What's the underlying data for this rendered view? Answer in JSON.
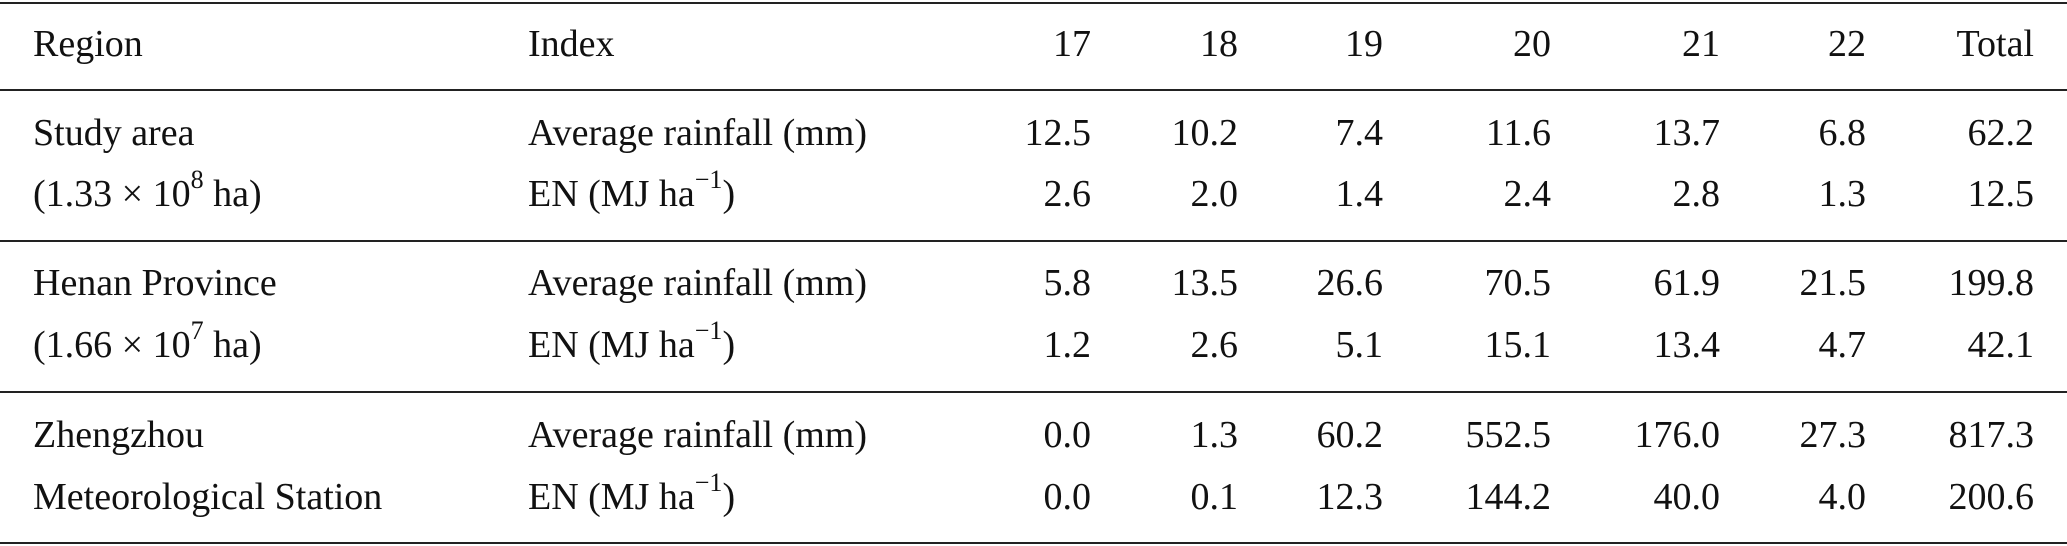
{
  "table": {
    "header": [
      "Region",
      "Index",
      "17",
      "18",
      "19",
      "20",
      "21",
      "22",
      "Total"
    ],
    "groups": [
      {
        "region": [
          [
            "Study area"
          ],
          [
            "(1.33 × 10",
            {
              "sup": "8"
            },
            " ha)"
          ]
        ],
        "rows": [
          {
            "index": [
              "Average rainfall (mm)"
            ],
            "values": [
              "12.5",
              "10.2",
              "7.4",
              "11.6",
              "13.7",
              "6.8",
              "62.2"
            ]
          },
          {
            "index": [
              "EN (MJ ha",
              {
                "sup": "−1"
              },
              ")"
            ],
            "values": [
              "2.6",
              "2.0",
              "1.4",
              "2.4",
              "2.8",
              "1.3",
              "12.5"
            ]
          }
        ]
      },
      {
        "region": [
          [
            "Henan Province"
          ],
          [
            "(1.66 × 10",
            {
              "sup": "7"
            },
            " ha)"
          ]
        ],
        "rows": [
          {
            "index": [
              "Average rainfall (mm)"
            ],
            "values": [
              "5.8",
              "13.5",
              "26.6",
              "70.5",
              "61.9",
              "21.5",
              "199.8"
            ]
          },
          {
            "index": [
              "EN (MJ ha",
              {
                "sup": "−1"
              },
              ")"
            ],
            "values": [
              "1.2",
              "2.6",
              "5.1",
              "15.1",
              "13.4",
              "4.7",
              "42.1"
            ]
          }
        ]
      },
      {
        "region": [
          [
            "Zhengzhou"
          ],
          [
            "Meteorological Station"
          ]
        ],
        "rows": [
          {
            "index": [
              "Average rainfall (mm)"
            ],
            "values": [
              "0.0",
              "1.3",
              "60.2",
              "552.5",
              "176.0",
              "27.3",
              "817.3"
            ]
          },
          {
            "index": [
              "EN (MJ ha",
              {
                "sup": "−1"
              },
              ")"
            ],
            "values": [
              "0.0",
              "0.1",
              "12.3",
              "144.2",
              "40.0",
              "4.0",
              "200.6"
            ]
          }
        ]
      }
    ]
  }
}
